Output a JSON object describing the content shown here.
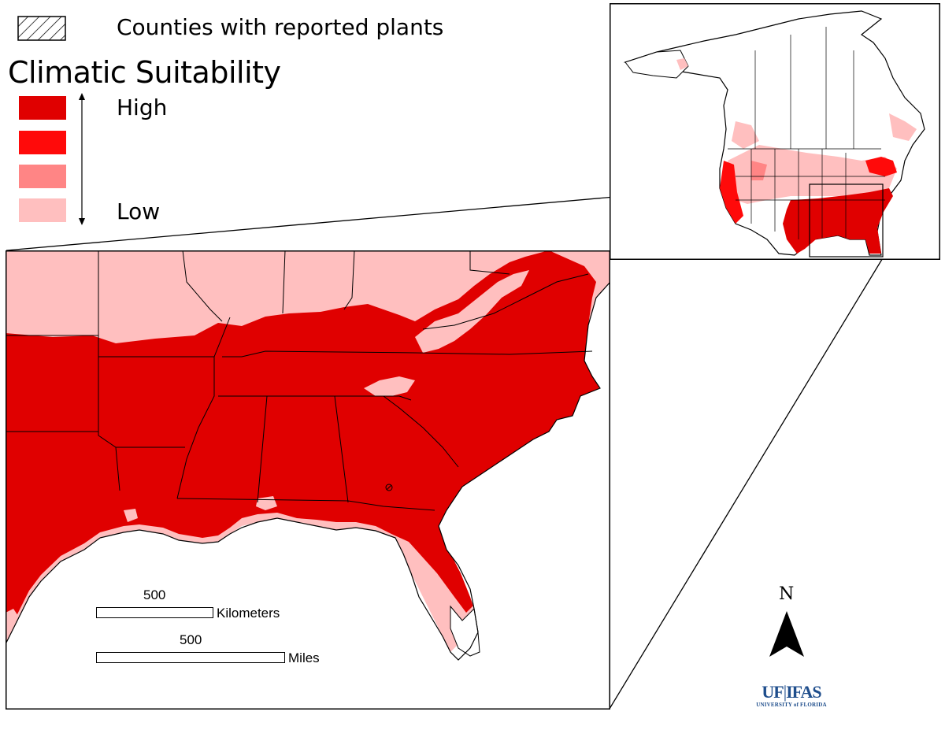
{
  "legend": {
    "hatch_label": "Counties with reported plants",
    "title": "Climatic Suitability",
    "high_label": "High",
    "low_label": "Low",
    "classes": [
      {
        "level": "high",
        "color": "#e00000"
      },
      {
        "level": "medium-high",
        "color": "#ff0a0a"
      },
      {
        "level": "medium-low",
        "color": "#ff8585"
      },
      {
        "level": "low",
        "color": "#ffbfbf"
      }
    ]
  },
  "scale": {
    "km_value": "500",
    "km_unit": "Kilometers",
    "mi_value": "500",
    "mi_unit": "Miles"
  },
  "north_arrow": {
    "label": "N"
  },
  "logo": {
    "uf": "UF",
    "ifas": "IFAS",
    "university": "UNIVERSITY of FLORIDA"
  }
}
